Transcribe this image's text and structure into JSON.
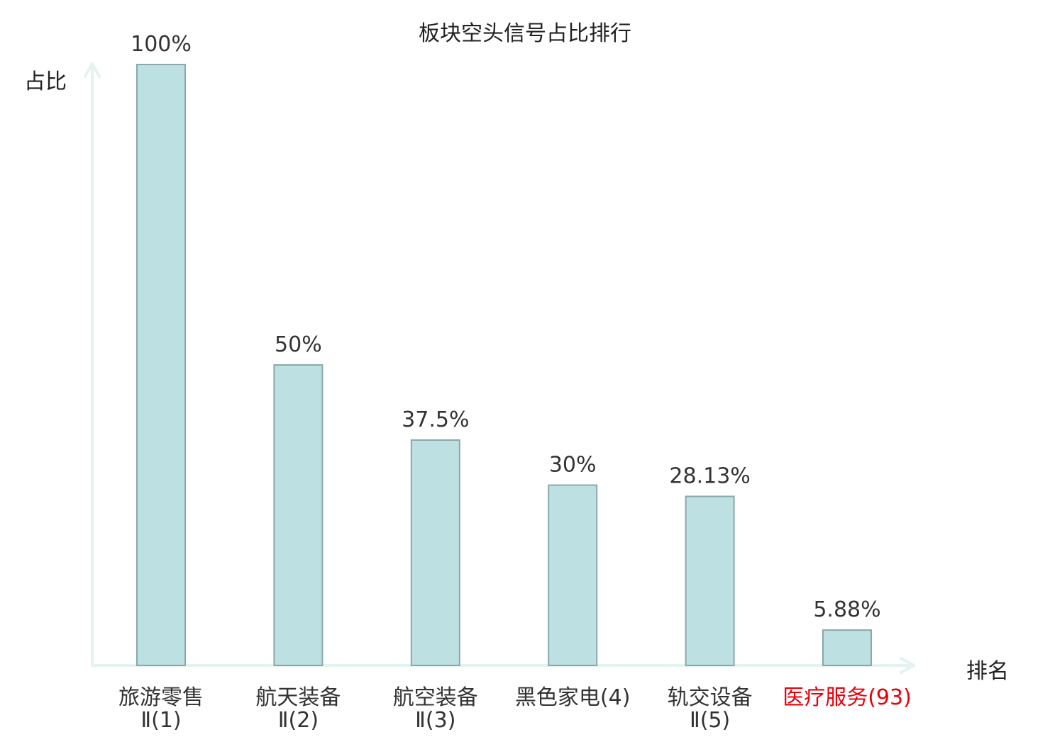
{
  "chart_data": {
    "type": "bar",
    "title": "板块空头信号占比排行",
    "ylabel": "占比",
    "xlabel": "排名",
    "ylim": [
      0,
      100
    ],
    "grid": false,
    "categories": [
      {
        "name": "旅游零售",
        "rank": "Ⅱ(1)",
        "highlight": false
      },
      {
        "name": "航天装备",
        "rank": "Ⅱ(2)",
        "highlight": false
      },
      {
        "name": "航空装备",
        "rank": "Ⅱ(3)",
        "highlight": false
      },
      {
        "name": "黑色家电(4)",
        "rank": "",
        "highlight": false
      },
      {
        "name": "轨交设备",
        "rank": "Ⅱ(5)",
        "highlight": false
      },
      {
        "name": "医疗服务(93)",
        "rank": "",
        "highlight": true
      }
    ],
    "values": [
      100,
      50,
      37.5,
      30,
      28.13,
      5.88
    ],
    "value_labels": [
      "100%",
      "50%",
      "37.5%",
      "30%",
      "28.13%",
      "5.88%"
    ],
    "colors": {
      "bar_fill": "#bde0e2",
      "bar_stroke": "#8aa8aa",
      "axis": "#e2f3f0",
      "label": "#333333",
      "highlight": "#e8000b"
    }
  }
}
